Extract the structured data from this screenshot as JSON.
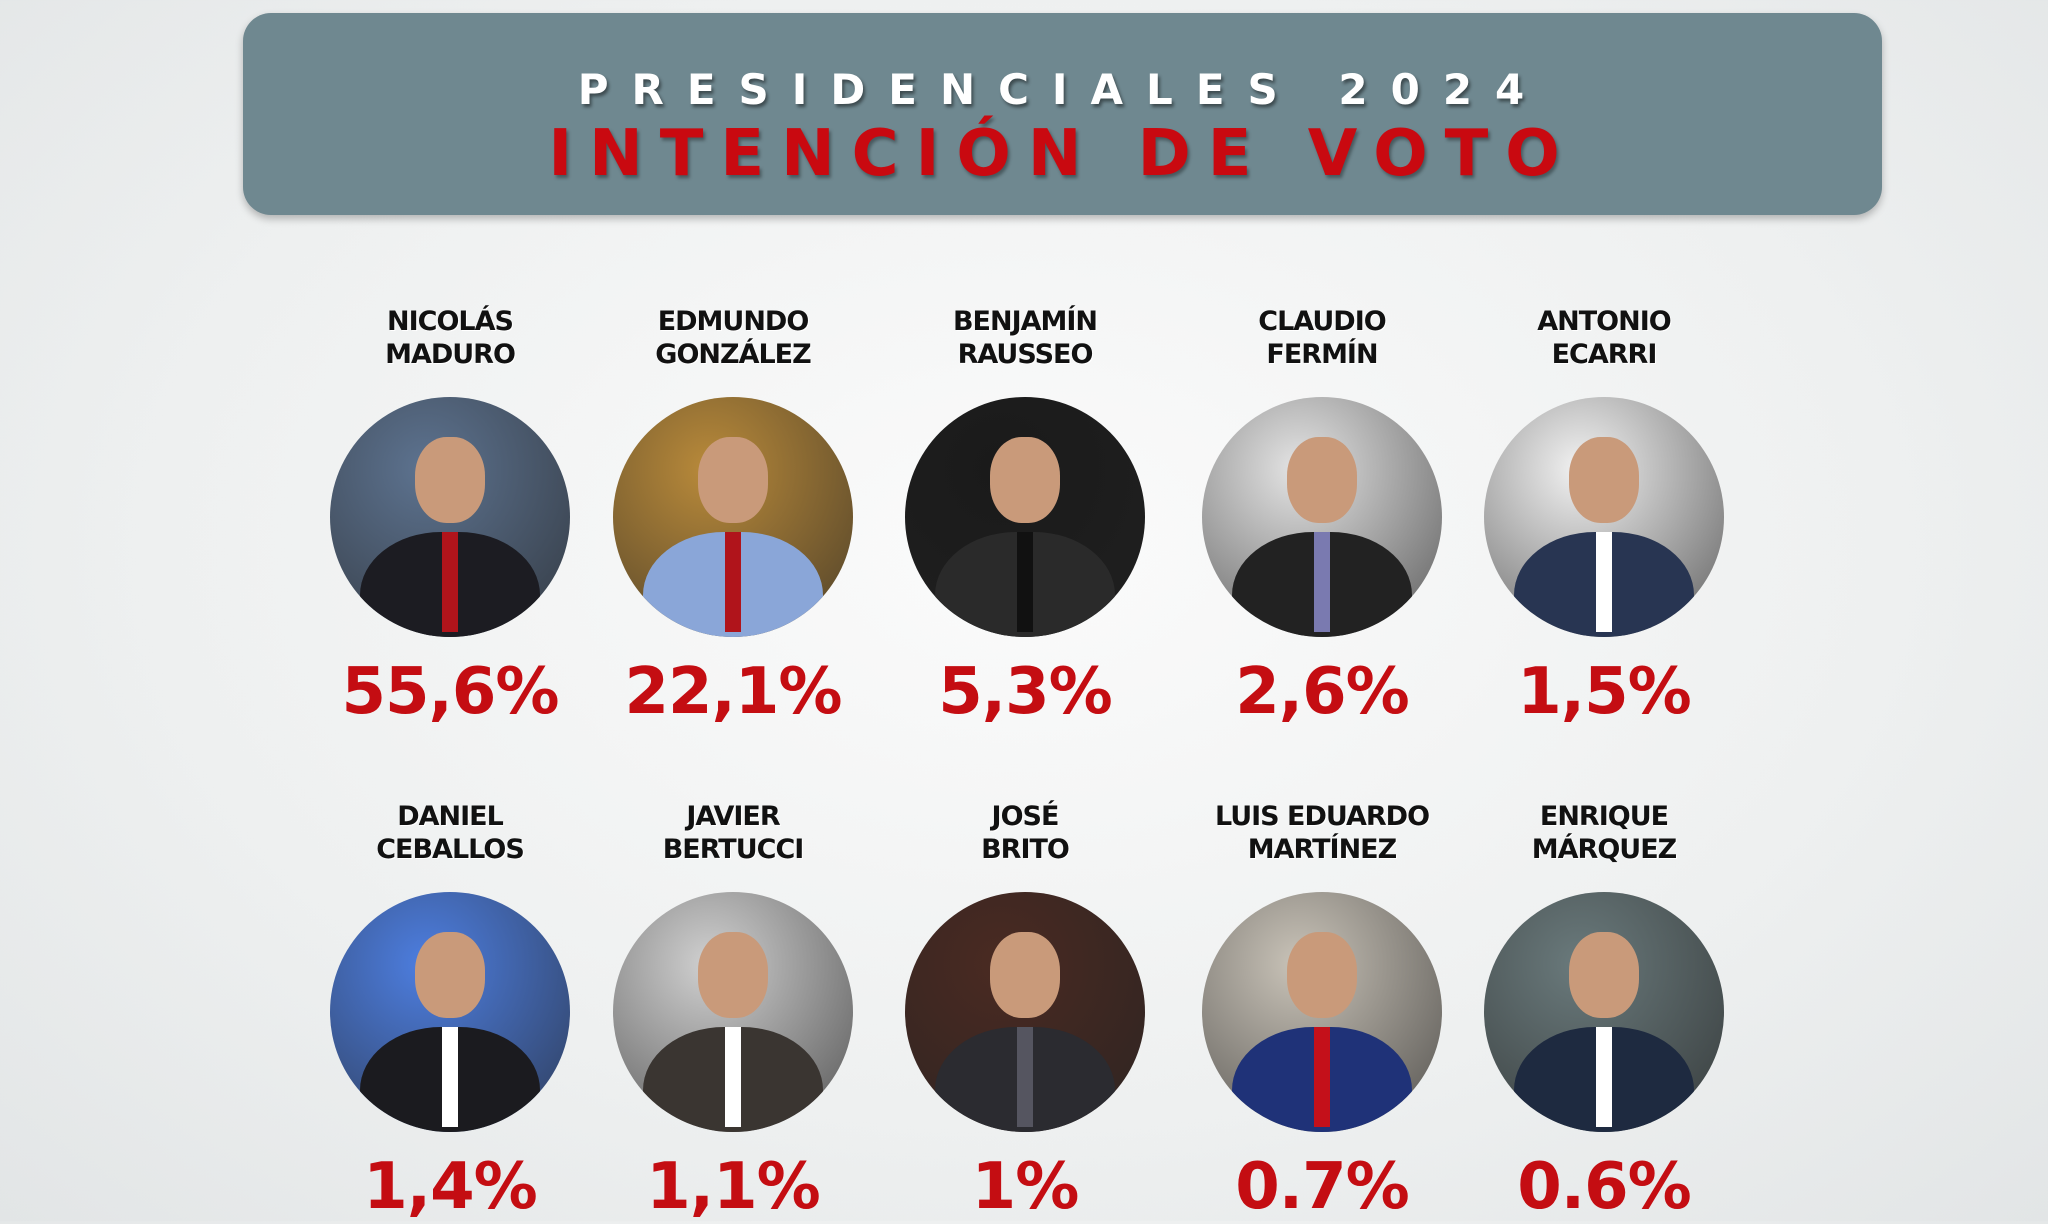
{
  "header": {
    "subtitle": "PRESIDENCIALES 2024",
    "title": "INTENCIÓN DE VOTO"
  },
  "candidates": [
    {
      "first": "NICOLÁS",
      "last": "MADURO",
      "pct": "55,6%",
      "bg": "#5d7390",
      "suit": "#1c1c22",
      "tie": "#b0141b"
    },
    {
      "first": "EDMUNDO",
      "last": "GONZÁLEZ",
      "pct": "22,1%",
      "bg": "#b98a3a",
      "suit": "#8aa6d8",
      "tie": "#b0141b"
    },
    {
      "first": "BENJAMÍN",
      "last": "RAUSSEO",
      "pct": "5,3%",
      "bg": "#1a1a1a",
      "suit": "#2a2a2a",
      "tie": "#111111"
    },
    {
      "first": "CLAUDIO",
      "last": "FERMÍN",
      "pct": "2,6%",
      "bg": "#e4e4e4",
      "suit": "#222222",
      "tie": "#7a7ab0"
    },
    {
      "first": "ANTONIO",
      "last": "ECARRI",
      "pct": "1,5%",
      "bg": "#f2f2f2",
      "suit": "#283552",
      "tie": "#ffffff"
    },
    {
      "first": "DANIEL",
      "last": "CEBALLOS",
      "pct": "1,4%",
      "bg": "#4d7ee0",
      "suit": "#1b1b1f",
      "tie": "#ffffff"
    },
    {
      "first": "JAVIER",
      "last": "BERTUCCI",
      "pct": "1,1%",
      "bg": "#d0d0d0",
      "suit": "#3a3531",
      "tie": "#ffffff"
    },
    {
      "first": "JOSÉ",
      "last": "BRITO",
      "pct": "1%",
      "bg": "#4a2a22",
      "suit": "#2b2b30",
      "tie": "#555560"
    },
    {
      "first": "LUIS EDUARDO",
      "last": "MARTÍNEZ",
      "pct": "0.7%",
      "bg": "#c9c3b8",
      "suit": "#1f3278",
      "tie": "#c4101a"
    },
    {
      "first": "ENRIQUE",
      "last": "MÁRQUEZ",
      "pct": "0.6%",
      "bg": "#6a7a7c",
      "suit": "#1e2a40",
      "tie": "#ffffff"
    }
  ]
}
